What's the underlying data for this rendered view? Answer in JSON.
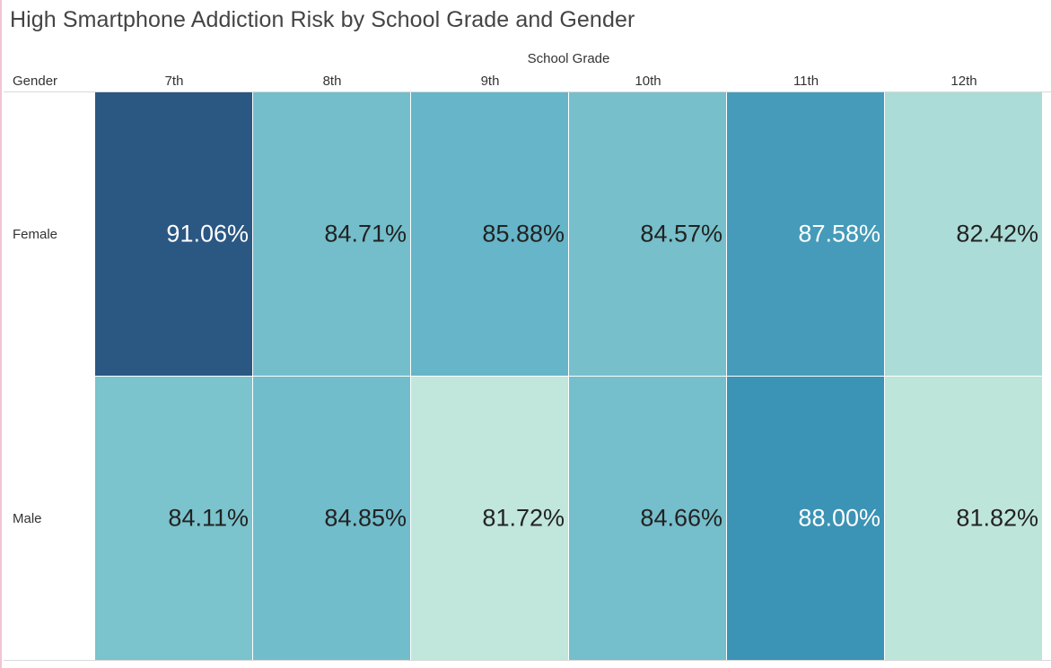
{
  "chart_data": {
    "type": "heatmap",
    "title": "High Smartphone Addiction Risk by School Grade and Gender",
    "column_field": "School Grade",
    "row_field": "Gender",
    "columns": [
      "7th",
      "8th",
      "9th",
      "10th",
      "11th",
      "12th"
    ],
    "rows": [
      "Female",
      "Male"
    ],
    "values": [
      [
        91.06,
        84.71,
        85.88,
        84.57,
        87.58,
        82.42
      ],
      [
        84.11,
        84.85,
        81.72,
        84.66,
        88.0,
        81.82
      ]
    ],
    "labels": [
      [
        "91.06%",
        "84.71%",
        "85.88%",
        "84.57%",
        "87.58%",
        "82.42%"
      ],
      [
        "84.11%",
        "84.85%",
        "81.72%",
        "84.66%",
        "88.00%",
        "81.82%"
      ]
    ],
    "color_scale": {
      "low_color": "#c1e6db",
      "high_color": "#2b5783",
      "dark_text": "#222222",
      "light_text": "#ffffff"
    }
  }
}
